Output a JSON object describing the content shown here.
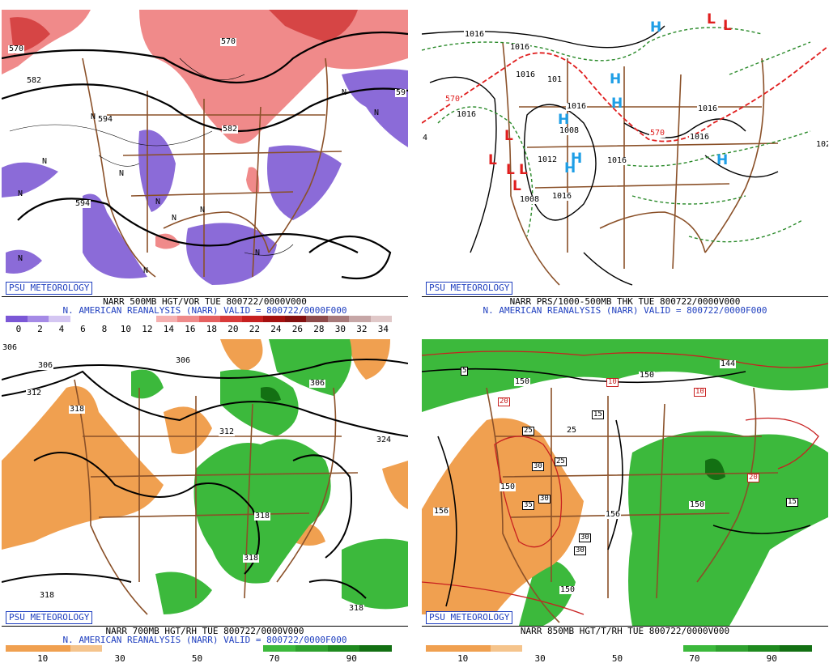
{
  "panels": [
    {
      "badge": "PSU METEOROLOGY",
      "line1": "NARR 500MB HGT/VOR TUE 800722/0000V000",
      "line2": "N. AMERICAN REANALYSIS (NARR) VALID = 800722/0000F000",
      "colorbar": {
        "colors": [
          "#7b57d6",
          "#a58ae6",
          "#d4c6f2",
          "#ffffff",
          "#ffffff",
          "#ffffff",
          "#ffffff",
          "#f5b0b0",
          "#ee8a8a",
          "#e56060",
          "#d83a3a",
          "#c62020",
          "#a51010",
          "#841010",
          "#8e4b4b",
          "#a77a7a",
          "#c6a6a6",
          "#e0c8c8"
        ],
        "ticks": [
          "0",
          "2",
          "4",
          "6",
          "8",
          "10",
          "12",
          "14",
          "16",
          "18",
          "20",
          "22",
          "24",
          "26",
          "28",
          "30",
          "32",
          "34"
        ]
      },
      "contour_labels": [
        "570",
        "582",
        "594",
        "594",
        "582",
        "570",
        "59"
      ]
    },
    {
      "badge": "PSU METEOROLOGY",
      "line1": "NARR PRS/1000-500MB THK TUE 800722/0000V000",
      "line2": "N. AMERICAN REANALYSIS (NARR) VALID = 800722/0000F000",
      "highs": [
        "H",
        "H",
        "H",
        "H",
        "H",
        "H",
        "H"
      ],
      "lows": [
        "L",
        "L",
        "L",
        "L",
        "L",
        "L",
        "L"
      ],
      "contour_labels": [
        "1016",
        "1016",
        "1016",
        "1016",
        "1016",
        "1016",
        "1016",
        "1008",
        "1016",
        "1016",
        "570",
        "570",
        "1008",
        "101",
        "1012",
        "4",
        "102"
      ]
    },
    {
      "badge": "PSU METEOROLOGY",
      "line1": "NARR 700MB HGT/RH TUE 800722/0000V000",
      "line2": "N. AMERICAN REANALYSIS (NARR) VALID = 800722/0000F000",
      "colorbar": {
        "colors": [
          "#f0a050",
          "#f0a050",
          "#f5c48c",
          "#ffffff",
          "#ffffff",
          "#ffffff",
          "#ffffff",
          "#ffffff",
          "#3cb93c",
          "#2ea12e",
          "#1f8a1f",
          "#137013"
        ],
        "ticks": [
          "10",
          "30",
          "50",
          "70",
          "90"
        ]
      },
      "contour_labels": [
        "306",
        "312",
        "318",
        "306",
        "306",
        "312",
        "324",
        "318",
        "318",
        "318",
        "318",
        "306"
      ]
    },
    {
      "badge": "PSU METEOROLOGY",
      "line1": "NARR 850MB HGT/T/RH TUE 800722/0000V000",
      "colorbar": {
        "colors": [
          "#f0a050",
          "#f0a050",
          "#f5c48c",
          "#ffffff",
          "#ffffff",
          "#ffffff",
          "#ffffff",
          "#ffffff",
          "#3cb93c",
          "#2ea12e",
          "#1f8a1f",
          "#137013"
        ],
        "ticks": [
          "10",
          "30",
          "50",
          "70",
          "90"
        ]
      },
      "contour_labels": [
        "150",
        "150",
        "156",
        "156",
        "150",
        "150",
        "144",
        "150"
      ],
      "temp_labels": [
        "5",
        "25",
        "15",
        "25",
        "30",
        "35",
        "30",
        "30",
        "30",
        "15",
        "10",
        "20",
        "10",
        "20",
        "25"
      ]
    }
  ]
}
